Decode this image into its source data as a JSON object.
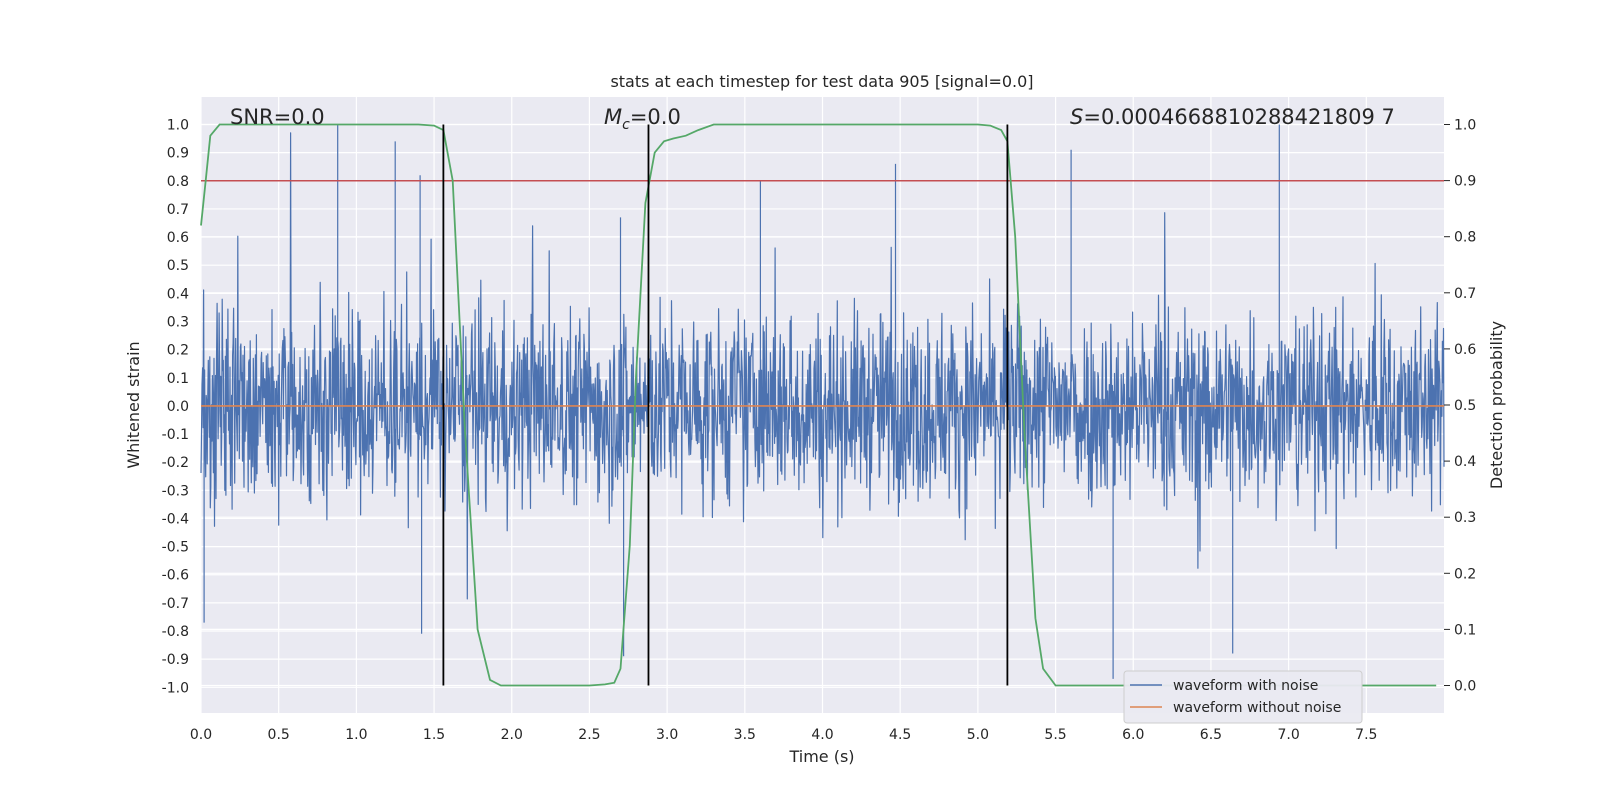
{
  "chart_data": {
    "type": "line",
    "title": "stats at each timestep for test data 905 [signal=0.0]",
    "xlabel": "Time (s)",
    "ylabel_left": "Whitened strain",
    "ylabel_right": "Detection probability",
    "xlim": [
      0.0,
      8.0
    ],
    "ylim_left": [
      -1.07,
      1.1
    ],
    "ylim_right": [
      -0.05,
      1.04
    ],
    "x_ticks": [
      "0.0",
      "0.5",
      "1.0",
      "1.5",
      "2.0",
      "2.5",
      "3.0",
      "3.5",
      "4.0",
      "4.5",
      "5.0",
      "5.5",
      "6.0",
      "6.5",
      "7.0",
      "7.5"
    ],
    "y_left_ticks": [
      "1.0",
      "0.9",
      "0.8",
      "0.7",
      "0.6",
      "0.5",
      "0.4",
      "0.3",
      "0.2",
      "0.1",
      "0.0",
      "-0.1",
      "-0.2",
      "-0.3",
      "-0.4",
      "-0.5",
      "-0.6",
      "-0.7",
      "-0.8",
      "-0.9",
      "-1.0"
    ],
    "y_right_ticks": [
      "1.0",
      "0.9",
      "0.8",
      "0.7",
      "0.6",
      "0.5",
      "0.4",
      "0.3",
      "0.2",
      "0.1",
      "0.0"
    ],
    "annotations": {
      "snr": "SNR=0.0",
      "mc_symbol": "M",
      "mc_sub": "c",
      "mc_value": "=0.0",
      "s_symbol": "S",
      "s_value": "=0.0004668810288421809 7"
    },
    "threshold": {
      "value": 0.8,
      "axis": "left",
      "color": "#c44e52"
    },
    "vertical_lines": [
      1.56,
      2.88,
      5.19
    ],
    "series": [
      {
        "name": "waveform with noise",
        "color": "#4c72b0",
        "axis": "left",
        "description_style": "dense noise, envelope approx +/-0.4 with peaks",
        "peaks": [
          [
            0.88,
            1.0
          ],
          [
            1.25,
            0.94
          ],
          [
            1.41,
            0.82
          ],
          [
            2.7,
            0.67
          ],
          [
            3.6,
            0.8
          ],
          [
            4.47,
            0.86
          ],
          [
            5.6,
            0.91
          ],
          [
            6.94,
            1.0
          ],
          [
            1.42,
            -0.81
          ],
          [
            2.72,
            -0.89
          ],
          [
            5.87,
            -0.97
          ],
          [
            6.64,
            -0.88
          ],
          [
            0.02,
            -0.77
          ]
        ]
      },
      {
        "name": "waveform without noise",
        "color": "#dd8452",
        "axis": "left",
        "x": [
          0.0,
          8.0
        ],
        "y": [
          0.0,
          0.0
        ]
      },
      {
        "name": "detection probability",
        "color": "#55a868",
        "axis": "right",
        "x": [
          0.0,
          0.03,
          0.06,
          0.12,
          0.2,
          0.5,
          1.0,
          1.4,
          1.5,
          1.56,
          1.62,
          1.7,
          1.78,
          1.86,
          1.93,
          2.0,
          2.5,
          2.6,
          2.66,
          2.7,
          2.76,
          2.8,
          2.86,
          2.92,
          2.98,
          3.04,
          3.12,
          3.2,
          3.3,
          3.4,
          3.5,
          4.0,
          4.5,
          5.0,
          5.08,
          5.15,
          5.19,
          5.24,
          5.3,
          5.37,
          5.42,
          5.5,
          5.6,
          6.0,
          7.0,
          7.95
        ],
        "y": [
          0.82,
          0.9,
          0.98,
          1.0,
          1.0,
          1.0,
          1.0,
          1.0,
          0.998,
          0.99,
          0.9,
          0.45,
          0.1,
          0.01,
          0.0,
          0.0,
          0.0,
          0.002,
          0.005,
          0.03,
          0.25,
          0.55,
          0.86,
          0.95,
          0.97,
          0.975,
          0.98,
          0.99,
          1.0,
          1.0,
          1.0,
          1.0,
          1.0,
          1.0,
          0.998,
          0.99,
          0.97,
          0.8,
          0.45,
          0.12,
          0.03,
          0.0,
          0.0,
          0.0,
          0.0,
          0.0
        ]
      }
    ],
    "legend": {
      "position": "lower-right",
      "entries": [
        "waveform with noise",
        "waveform without noise"
      ]
    },
    "grid": true,
    "background": "#eaeaf2"
  }
}
